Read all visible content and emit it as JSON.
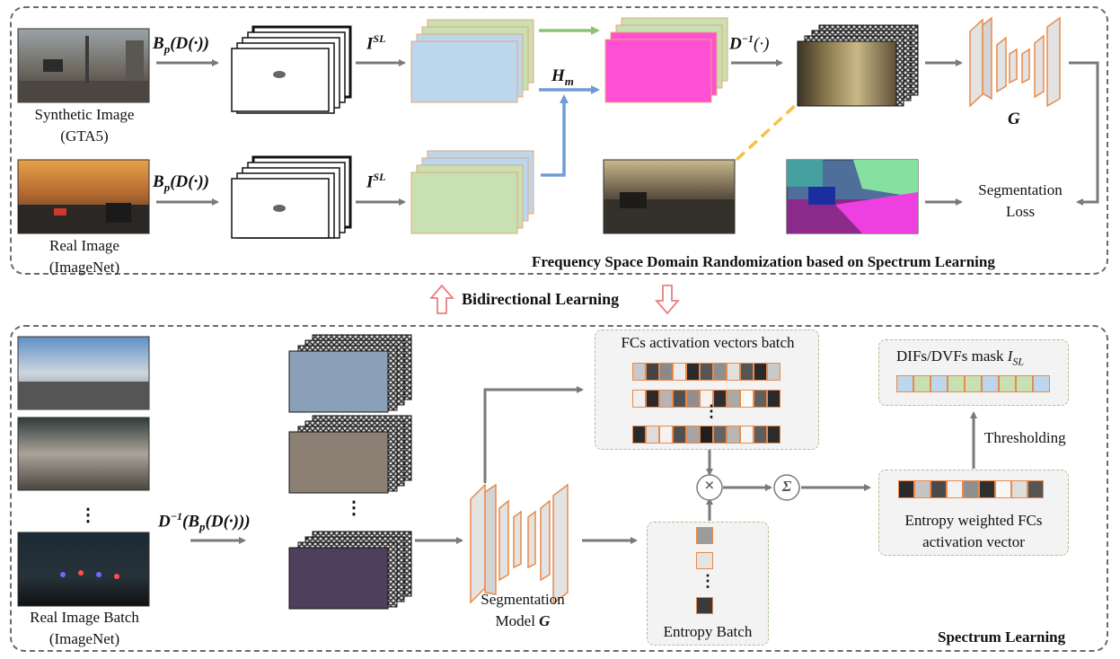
{
  "top_panel": {
    "title": "Frequency Space Domain Randomization based on Spectrum Learning",
    "synthetic_label_1": "Synthetic Image",
    "synthetic_label_2": "(GTA5)",
    "real_label_1": "Real Image",
    "real_label_2": "(ImageNet)",
    "op_bp_1": "B",
    "op_bp_sub": "p",
    "op_bp_rest": "(D(·))",
    "op_isl": "I",
    "op_isl_sup": "SL",
    "op_hm": "H",
    "op_hm_sub": "m",
    "op_dinv": "D",
    "op_dinv_sup": "−1",
    "op_dinv_rest": "(·)",
    "model_g": "G",
    "seg_loss_1": "Segmentation",
    "seg_loss_2": "Loss"
  },
  "middle": {
    "label": "Bidirectional Learning"
  },
  "bottom_panel": {
    "title": "Spectrum Learning",
    "real_batch_1": "Real Image Batch",
    "real_batch_2": "(ImageNet)",
    "op_full": "D",
    "op_full_sup": "−1",
    "op_full_rest_1": "(B",
    "op_full_sub": "p",
    "op_full_rest_2": "(D(·)))",
    "dots": "⋮",
    "seg_model_1": "Segmentation",
    "seg_model_2": "Model",
    "seg_model_g": "G",
    "fcs_batch_label": "FCs activation vectors batch",
    "entropy_batch_label": "Entropy Batch",
    "mul_symbol": "×",
    "sum_symbol": "Σ",
    "entropy_weighted_1": "Entropy weighted FCs",
    "entropy_weighted_2": "activation vector",
    "thresholding": "Thresholding",
    "mask_label": "DIFs/DVFs mask",
    "mask_sym": "I",
    "mask_sub": "SL"
  },
  "colors": {
    "green_map": "#c9e0b3",
    "blue_map": "#bcd6ee",
    "magenta_map": "#ff4fd3",
    "arrow_gray": "#7a7a7a",
    "arrow_green": "#8cc474",
    "arrow_blue": "#6f9bd6",
    "orange_border": "#e98a4a",
    "pink_arrow": "#e88080",
    "yellow_dash": "#f5c242"
  },
  "fcs_rows": [
    [
      "#c9c9c9",
      "#444",
      "#8a8a8a",
      "#ececec",
      "#2a2a2a",
      "#555",
      "#8f8f8f",
      "#e0e0e0",
      "#555",
      "#2a2a2a",
      "#c9c9c9"
    ],
    [
      "#f0f0f0",
      "#2a2a2a",
      "#b5b5b5",
      "#505050",
      "#8f8f8f",
      "#f3f3f3",
      "#2f2f2f",
      "#a9a9a9",
      "#fafafa",
      "#606060",
      "#2a2a2a"
    ],
    [
      "#2a2a2a",
      "#dcdcdc",
      "#f2f2f2",
      "#505050",
      "#a5a5a5",
      "#1f1f1f",
      "#646464",
      "#b7b7b7",
      "#f5f5f5",
      "#5e5e5e",
      "#2b2b2b"
    ]
  ],
  "entropy_cells": [
    "#9b9b9b",
    "#e4e4e4",
    "#3a3a3a"
  ],
  "weighted_vec": [
    "#2a2a2a",
    "#c5c5c5",
    "#4a4a4a",
    "#f2f2f2",
    "#8f8f8f",
    "#2f2f2f",
    "#f7f7f7",
    "#dedede",
    "#555"
  ],
  "mask_vec": [
    "#bcd6ee",
    "#c9e0b3",
    "#bcd6ee",
    "#c9e0b3",
    "#c9e0b3",
    "#bcd6ee",
    "#c9e0b3",
    "#c9e0b3",
    "#bcd6ee"
  ]
}
